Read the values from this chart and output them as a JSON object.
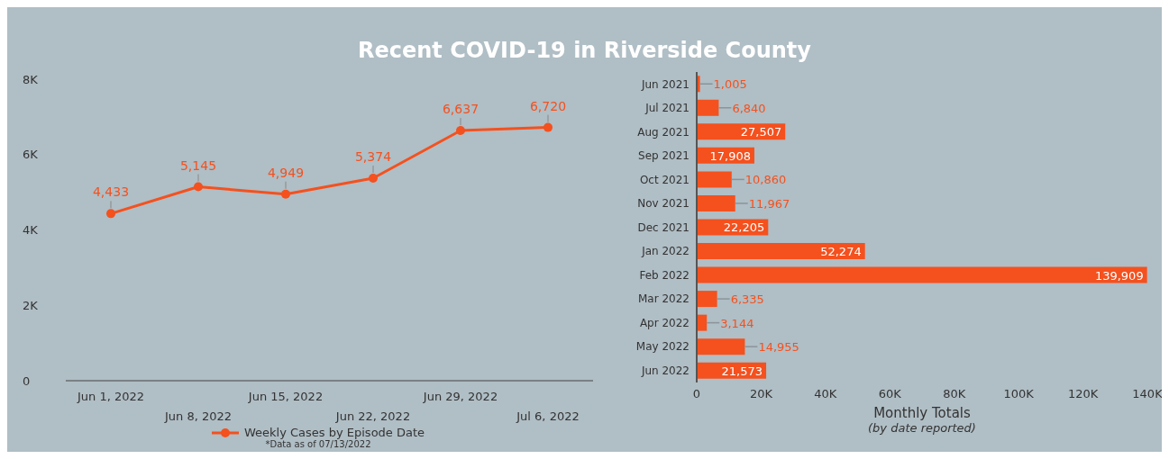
{
  "chart_data": [
    {
      "type": "line",
      "title": "Recent COVID-19 in Riverside County",
      "categories": [
        "Jun 1, 2022",
        "Jun 8, 2022",
        "Jun 15, 2022",
        "Jun 22, 2022",
        "Jun 29, 2022",
        "Jul 6, 2022"
      ],
      "series": [
        {
          "name": "Weekly Cases by Episode Date",
          "color": "#f4511e",
          "values": [
            4433,
            5145,
            4949,
            5374,
            6637,
            6720
          ],
          "value_labels": [
            "4,433",
            "5,145",
            "4,949",
            "5,374",
            "6,637",
            "6,720"
          ]
        }
      ],
      "ylim": [
        0,
        8000
      ],
      "yticks": [
        0,
        {
          "value": 2000,
          "label": "2K"
        },
        {
          "value": 4000,
          "label": "4K"
        },
        {
          "value": 6000,
          "label": "6K"
        },
        {
          "value": 8000,
          "label": "8K"
        }
      ],
      "grid": false,
      "legend": "bottom",
      "marker": "circle",
      "line_style": "solid",
      "annotations": [
        "*Data as of 07/13/2022"
      ]
    },
    {
      "type": "bar",
      "orientation": "horizontal",
      "categories": [
        "Jun 2021",
        "Jul 2021",
        "Aug 2021",
        "Sep 2021",
        "Oct 2021",
        "Nov 2021",
        "Dec 2021",
        "Jan 2022",
        "Feb 2022",
        "Mar 2022",
        "Apr 2022",
        "May 2022",
        "Jun 2022"
      ],
      "values": [
        1005,
        6840,
        27507,
        17908,
        10860,
        11967,
        22205,
        52274,
        139909,
        6335,
        3144,
        14955,
        21573
      ],
      "value_labels": [
        "1,005",
        "6,840",
        "27,507",
        "17,908",
        "10,860",
        "11,967",
        "22,205",
        "52,274",
        "139,909",
        "6,335",
        "3,144",
        "14,955",
        "21,573"
      ],
      "color": "#f4511e",
      "xlim": [
        0,
        140000
      ],
      "xticks": [
        0,
        {
          "value": 20000,
          "label": "20K"
        },
        {
          "value": 40000,
          "label": "40K"
        },
        {
          "value": 60000,
          "label": "60K"
        },
        {
          "value": 80000,
          "label": "80K"
        },
        {
          "value": 100000,
          "label": "100K"
        },
        {
          "value": 120000,
          "label": "120K"
        },
        {
          "value": 140000,
          "label": "140K"
        }
      ],
      "xlabel": "Monthly Totals",
      "grid": false,
      "annotations": [
        "(by date reported)"
      ]
    }
  ]
}
